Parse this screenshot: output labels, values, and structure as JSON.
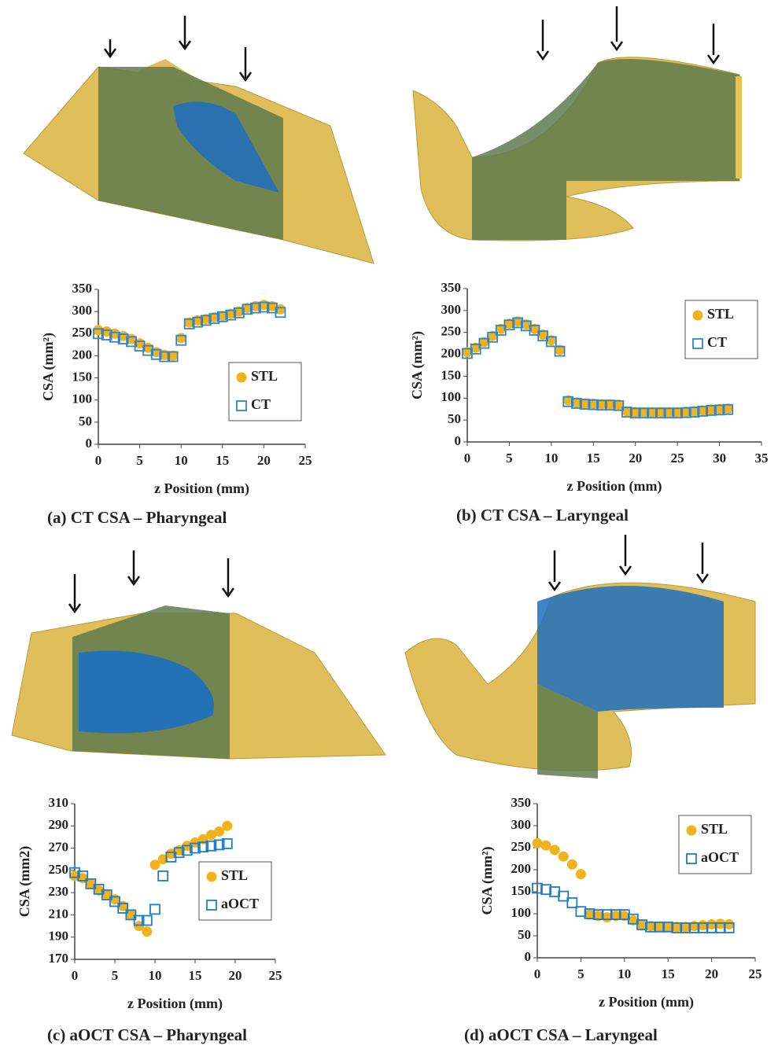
{
  "chart_data": [
    {
      "type": "scatter",
      "title": "(a) CT CSA – Pharyngeal",
      "x_label": "z Position (mm)",
      "y_label": "CSA (mm²)",
      "x": [
        0,
        1,
        2,
        3,
        4,
        5,
        6,
        7,
        8,
        9,
        10,
        11,
        12,
        13,
        14,
        15,
        16,
        17,
        18,
        19,
        20,
        21,
        22
      ],
      "series": [
        {
          "name": "STL",
          "color": "#f2b21b",
          "marker": "circle",
          "values": [
            258,
            255,
            250,
            245,
            238,
            228,
            218,
            208,
            202,
            200,
            240,
            275,
            280,
            283,
            287,
            290,
            295,
            300,
            308,
            312,
            315,
            312,
            305
          ]
        },
        {
          "name": "CT",
          "color": "#2f86c9",
          "marker": "open-square",
          "values": [
            250,
            247,
            242,
            238,
            232,
            222,
            212,
            203,
            198,
            198,
            235,
            272,
            276,
            280,
            284,
            288,
            292,
            297,
            305,
            308,
            310,
            308,
            298
          ]
        }
      ],
      "xlim": [
        0,
        25
      ],
      "xticks": [
        0,
        5,
        10,
        15,
        20,
        25
      ],
      "ylim": [
        0,
        350
      ],
      "yticks": [
        0,
        50,
        100,
        150,
        200,
        250,
        300,
        350
      ],
      "legend": "lower right"
    },
    {
      "type": "scatter",
      "title": "(b) CT CSA – Laryngeal",
      "x_label": "z Position (mm)",
      "y_label": "CSA (mm²)",
      "x": [
        0,
        1,
        2,
        3,
        4,
        5,
        6,
        7,
        8,
        9,
        10,
        11,
        12,
        13,
        14,
        15,
        16,
        17,
        18,
        19,
        20,
        21,
        22,
        23,
        24,
        25,
        26,
        27,
        28,
        29,
        30,
        31
      ],
      "series": [
        {
          "name": "STL",
          "color": "#f2b21b",
          "marker": "circle",
          "values": [
            205,
            215,
            228,
            242,
            258,
            270,
            275,
            268,
            258,
            245,
            232,
            210,
            95,
            90,
            88,
            87,
            86,
            86,
            85,
            70,
            68,
            68,
            68,
            68,
            68,
            68,
            69,
            70,
            72,
            74,
            75,
            76
          ]
        },
        {
          "name": "CT",
          "color": "#2f86c9",
          "marker": "open-square",
          "values": [
            202,
            212,
            225,
            239,
            255,
            267,
            272,
            265,
            255,
            242,
            229,
            207,
            92,
            88,
            86,
            85,
            84,
            84,
            83,
            68,
            66,
            66,
            66,
            66,
            66,
            66,
            67,
            68,
            70,
            72,
            73,
            74
          ]
        }
      ],
      "xlim": [
        0,
        35
      ],
      "xticks": [
        0,
        5,
        10,
        15,
        20,
        25,
        30,
        35
      ],
      "ylim": [
        0,
        350
      ],
      "yticks": [
        0,
        50,
        100,
        150,
        200,
        250,
        300,
        350
      ],
      "legend": "upper right"
    },
    {
      "type": "scatter",
      "title": "(c) aOCT CSA – Pharyngeal",
      "x_label": "z Position (mm)",
      "y_label": "CSA (mm2)",
      "x": [
        0,
        1,
        2,
        3,
        4,
        5,
        6,
        7,
        8,
        9,
        10,
        11,
        12,
        13,
        14,
        15,
        16,
        17,
        18,
        19
      ],
      "series": [
        {
          "name": "STL",
          "color": "#f2b21b",
          "marker": "circle",
          "values": [
            245,
            243,
            238,
            232,
            228,
            224,
            218,
            210,
            200,
            195,
            255,
            260,
            265,
            268,
            272,
            275,
            278,
            282,
            285,
            290
          ]
        },
        {
          "name": "aOCT",
          "color": "#1f7cc8",
          "marker": "open-square",
          "values": [
            248,
            245,
            238,
            233,
            228,
            222,
            216,
            210,
            205,
            205,
            215,
            245,
            262,
            266,
            268,
            270,
            271,
            272,
            273,
            274
          ]
        }
      ],
      "xlim": [
        0,
        25
      ],
      "xticks": [
        0,
        5,
        10,
        15,
        20,
        25
      ],
      "ylim": [
        170,
        310
      ],
      "yticks": [
        170,
        190,
        210,
        230,
        250,
        270,
        290,
        310
      ],
      "legend": "center right"
    },
    {
      "type": "scatter",
      "title": "(d) aOCT CSA – Laryngeal",
      "x_label": "z Position (mm)",
      "y_label": "CSA (mm²)",
      "x": [
        0,
        1,
        2,
        3,
        4,
        5,
        6,
        7,
        8,
        9,
        10,
        11,
        12,
        13,
        14,
        15,
        16,
        17,
        18,
        19,
        20,
        21,
        22
      ],
      "series": [
        {
          "name": "STL",
          "color": "#f2b21b",
          "marker": "circle",
          "values": [
            260,
            255,
            245,
            230,
            212,
            190,
            98,
            95,
            92,
            95,
            95,
            85,
            75,
            72,
            70,
            70,
            70,
            70,
            72,
            74,
            76,
            77,
            76
          ]
        },
        {
          "name": "aOCT",
          "color": "#1f7cc8",
          "marker": "open-square",
          "values": [
            158,
            155,
            150,
            140,
            125,
            105,
            100,
            98,
            98,
            98,
            98,
            88,
            75,
            70,
            70,
            70,
            68,
            68,
            68,
            68,
            68,
            68,
            68
          ]
        }
      ],
      "xlim": [
        0,
        25
      ],
      "xticks": [
        0,
        5,
        10,
        15,
        20,
        25
      ],
      "ylim": [
        0,
        350
      ],
      "yticks": [
        0,
        50,
        100,
        150,
        200,
        250,
        300,
        350
      ],
      "legend": "upper right"
    }
  ]
}
